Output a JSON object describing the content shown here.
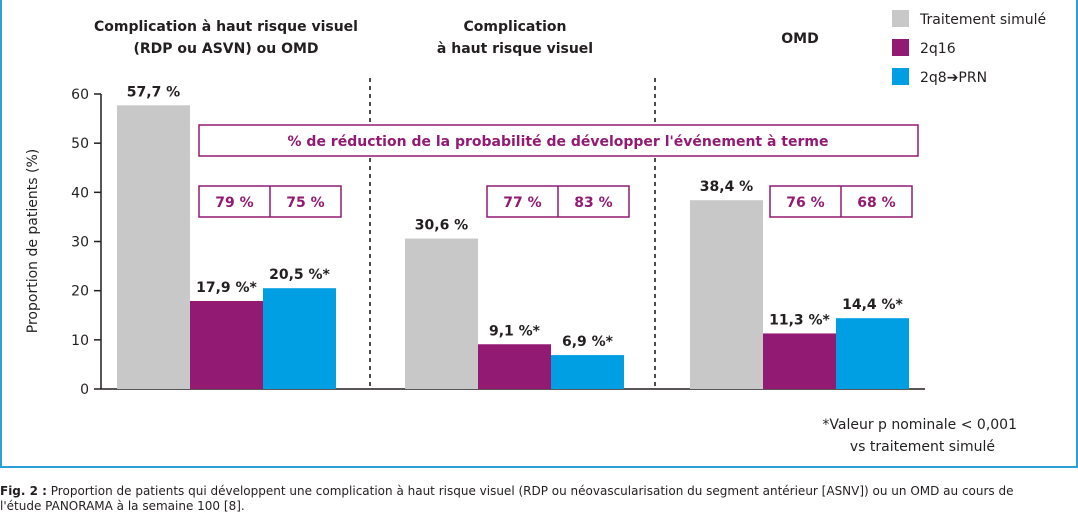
{
  "chart_data": {
    "type": "bar",
    "groups": [
      {
        "title_lines": [
          "Complication à haut risque visuel",
          "(RDP ou ASVN) ou OMD"
        ],
        "values": [
          57.7,
          17.9,
          20.5
        ],
        "labels": [
          "57,7 %",
          "17,9 %*",
          "20,5 %*"
        ],
        "reductions": [
          "79 %",
          "75 %"
        ]
      },
      {
        "title_lines": [
          "Complication",
          "à haut risque visuel"
        ],
        "values": [
          30.6,
          9.1,
          6.9
        ],
        "labels": [
          "30,6 %",
          "9,1 %*",
          "6,9 %*"
        ],
        "reductions": [
          "77 %",
          "83 %"
        ]
      },
      {
        "title_lines": [
          "OMD"
        ],
        "values": [
          38.4,
          11.3,
          14.4
        ],
        "labels": [
          "38,4 %",
          "11,3 %*",
          "14,4 %*"
        ],
        "reductions": [
          "76 %",
          "68 %"
        ]
      }
    ],
    "series": [
      {
        "name": "Traitement simulé",
        "color": "#c8c8c8"
      },
      {
        "name": "2q16",
        "color": "#921a73"
      },
      {
        "name": "2q8➔PRN",
        "color": "#009fe3"
      }
    ],
    "ylabel": "Proportion de patients (%)",
    "ylim": [
      0,
      60
    ],
    "yticks": [
      0,
      10,
      20,
      30,
      40,
      50,
      60
    ],
    "reduction_banner": "% de réduction de la probabilité de développer l'événement à terme",
    "footnote_lines": [
      "*Valeur p nominale < 0,001",
      "vs traitement simulé"
    ],
    "legend_position": "top-right",
    "grid": false
  },
  "caption": {
    "prefix": "Fig. 2 :",
    "line1": " Proportion de patients qui développent une complication à haut risque visuel (RDP ou néovascularisation du segment antérieur [ASNV]) ou un OMD au cours de",
    "line2": "l'étude PANORAMA à la semaine 100 [8]."
  },
  "colors": {
    "frame": "#2a9fd8",
    "accent": "#921a73"
  }
}
